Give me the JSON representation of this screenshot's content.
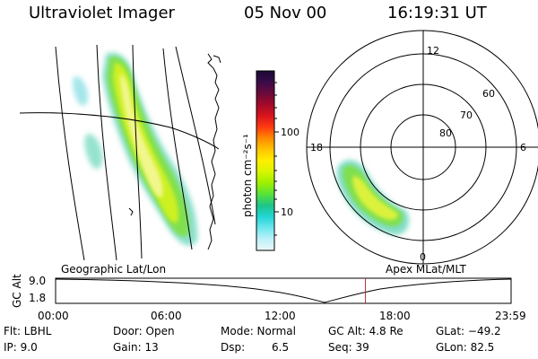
{
  "header": {
    "instrument": "Ultraviolet Imager",
    "date": "05 Nov 00",
    "time": "16:19:31 UT"
  },
  "colorbar": {
    "label": "photon cm⁻²s⁻¹",
    "ticks": [
      "100",
      "10"
    ],
    "colors": [
      "#1a0a33",
      "#3a0b4a",
      "#6a0a3a",
      "#a30a2a",
      "#d8141e",
      "#ff3a10",
      "#ff8a00",
      "#ffc400",
      "#ffee00",
      "#d8f500",
      "#9cf000",
      "#55e23a",
      "#1ec48a",
      "#22d6d6",
      "#6fe6ee",
      "#bdf2f8",
      "#eaf8fb"
    ]
  },
  "left_panel": {
    "label": "Geographic Lat/Lon"
  },
  "right_panel": {
    "label": "Apex MLat/MLT",
    "mlt_labels": {
      "top": "12",
      "left": "18",
      "right": "6",
      "bottom": "0"
    },
    "lat_labels": [
      "60",
      "70",
      "80"
    ]
  },
  "orbit_plot": {
    "ylabel": "GC Alt",
    "ytick_top": "9.0",
    "ytick_bottom": "1.8",
    "xticks": [
      "00:00",
      "06:00",
      "12:00",
      "18:00",
      "23:59"
    ],
    "marker_hour": 16.325,
    "marker_color": "#b03030"
  },
  "footer": {
    "flt": "Flt: LBHL",
    "ip": "IP:  9.0",
    "door": "Door: Open",
    "gain": "Gain: 13",
    "mode": "Mode: Normal",
    "dsp_label": "Dsp:",
    "dsp_value": "6.5",
    "gc_alt": "GC Alt: 4.8 Re",
    "seq": "Seq: 39",
    "glat": "GLat: −49.2",
    "glon": "GLon: 82.5"
  }
}
